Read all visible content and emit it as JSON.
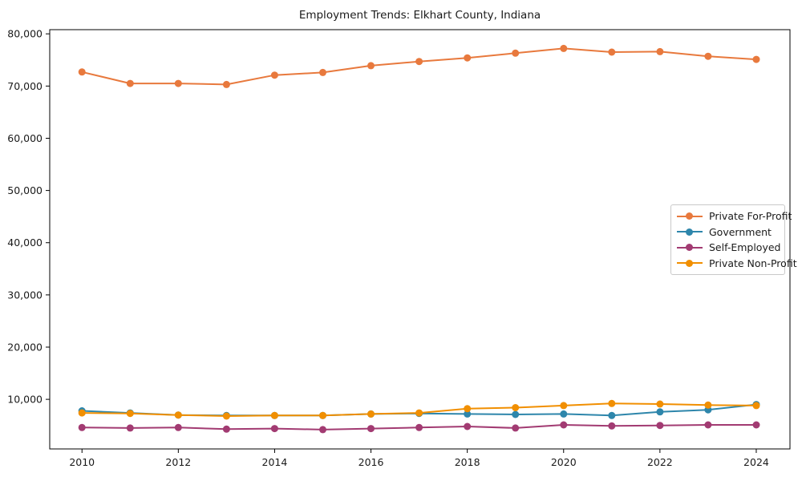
{
  "figure": {
    "title": "Employment Trends: Elkhart County, Indiana",
    "background": "#ffffff",
    "axis_color": "#000000",
    "text_color": "#1a1a1a",
    "legend_border_color": "#c9c9c9"
  },
  "chart_data": {
    "type": "line",
    "title": "Employment Trends: Elkhart County, Indiana",
    "xlabel": "",
    "ylabel": "",
    "x": [
      2010,
      2011,
      2012,
      2013,
      2014,
      2015,
      2016,
      2017,
      2018,
      2019,
      2020,
      2021,
      2022,
      2023,
      2024
    ],
    "series": [
      {
        "name": "Private For-Profit",
        "color": "#e8793d",
        "values": [
          72700,
          70500,
          70500,
          70300,
          72100,
          72600,
          73900,
          74700,
          75400,
          76300,
          77200,
          76500,
          76600,
          75700,
          75100
        ]
      },
      {
        "name": "Government",
        "color": "#2e86ab",
        "values": [
          7800,
          7400,
          7000,
          6900,
          6900,
          6900,
          7200,
          7300,
          7200,
          7100,
          7200,
          6900,
          7600,
          8000,
          9000
        ]
      },
      {
        "name": "Self-Employed",
        "color": "#a23b72",
        "values": [
          4600,
          4500,
          4600,
          4300,
          4400,
          4200,
          4400,
          4600,
          4800,
          4500,
          5100,
          4900,
          5000,
          5100,
          5100
        ]
      },
      {
        "name": "Private Non-Profit",
        "color": "#f18f01",
        "values": [
          7400,
          7300,
          7000,
          6800,
          6900,
          6900,
          7200,
          7400,
          8200,
          8400,
          8800,
          9200,
          9100,
          8900,
          8800
        ]
      }
    ],
    "xticks": [
      2010,
      2012,
      2014,
      2016,
      2018,
      2020,
      2022,
      2024
    ],
    "xtick_labels": [
      "2010",
      "2012",
      "2014",
      "2016",
      "2018",
      "2020",
      "2022",
      "2024"
    ],
    "yticks": [
      10000,
      20000,
      30000,
      40000,
      50000,
      60000,
      70000,
      80000
    ],
    "ytick_labels": [
      "10,000",
      "20,000",
      "30,000",
      "40,000",
      "50,000",
      "60,000",
      "70,000",
      "80,000"
    ],
    "xlim": [
      2009.33,
      2024.7
    ],
    "ylim": [
      500,
      80800
    ],
    "grid": false,
    "legend_position": "center-right",
    "marker": "circle"
  }
}
